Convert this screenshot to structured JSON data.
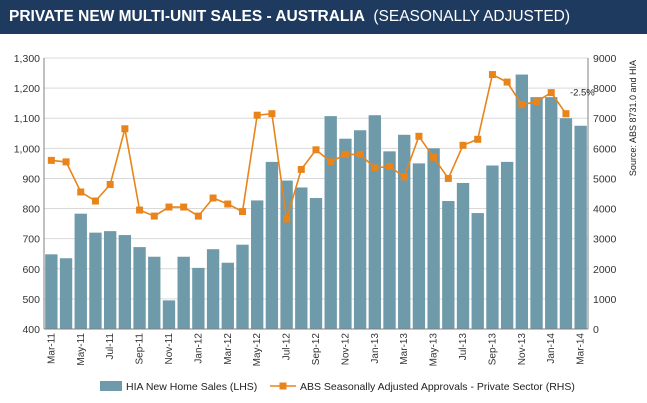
{
  "header": {
    "title": "PRIVATE NEW MULTI-UNIT SALES - AUSTRALIA",
    "subtitle": "(SEASONALLY ADJUSTED)",
    "bg_color": "#1e3a5f"
  },
  "chart_data": {
    "type": "bar",
    "categories": [
      "Mar-11",
      "Apr-11",
      "May-11",
      "Jun-11",
      "Jul-11",
      "Aug-11",
      "Sep-11",
      "Oct-11",
      "Nov-11",
      "Dec-11",
      "Jan-12",
      "Feb-12",
      "Mar-12",
      "Apr-12",
      "May-12",
      "Jun-12",
      "Jul-12",
      "Aug-12",
      "Sep-12",
      "Oct-12",
      "Nov-12",
      "Dec-12",
      "Jan-13",
      "Feb-13",
      "Mar-13",
      "Apr-13",
      "May-13",
      "Jun-13",
      "Jul-13",
      "Aug-13",
      "Sep-13",
      "Oct-13",
      "Nov-13",
      "Dec-13",
      "Jan-14",
      "Feb-14",
      "Mar-14"
    ],
    "tick_labels": [
      "Mar-11",
      "May-11",
      "Jul-11",
      "Sep-11",
      "Nov-11",
      "Jan-12",
      "Mar-12",
      "May-12",
      "Jul-12",
      "Sep-12",
      "Nov-12",
      "Jan-13",
      "Mar-13",
      "May-13",
      "Jul-13",
      "Sep-13",
      "Nov-13",
      "Jan-14",
      "Mar-14"
    ],
    "series": [
      {
        "name": "HIA New Home Sales (LHS)",
        "type": "bar",
        "axis": "left",
        "color": "#6e9aaa",
        "values": [
          648,
          635,
          783,
          720,
          725,
          712,
          672,
          640,
          495,
          640,
          603,
          665,
          620,
          680,
          827,
          955,
          893,
          870,
          835,
          1107,
          1032,
          1060,
          1110,
          990,
          1045,
          950,
          1000,
          825,
          885,
          785,
          943,
          955,
          1245,
          1170,
          1170,
          1100,
          1075
        ]
      },
      {
        "name": "ABS Seasonally Adjusted Approvals - Private Sector (RHS)",
        "type": "line",
        "axis": "right",
        "color": "#e8841a",
        "values": [
          5600,
          5550,
          4550,
          4250,
          4800,
          6650,
          3950,
          3750,
          4050,
          4050,
          3750,
          4350,
          4150,
          3900,
          7100,
          7150,
          3650,
          5300,
          5950,
          5550,
          5800,
          5800,
          5350,
          5400,
          5050,
          6400,
          5700,
          5000,
          6100,
          6300,
          8450,
          8200,
          7450,
          7550,
          7850,
          7150,
          null
        ]
      }
    ],
    "ylim_left": [
      400,
      1300
    ],
    "yticks_left": [
      "400",
      "500",
      "600",
      "700",
      "800",
      "900",
      "1,000",
      "1,100",
      "1,200",
      "1,300"
    ],
    "ylim_right": [
      0,
      9000
    ],
    "yticks_right": [
      "0",
      "1000",
      "2000",
      "3000",
      "4000",
      "5000",
      "6000",
      "7000",
      "8000",
      "9000"
    ],
    "annotation": {
      "text": "-2.5%",
      "at_category": "Feb-14"
    },
    "source_note": "Source: ABS 8731.0 and HIA",
    "legend_position": "bottom"
  }
}
